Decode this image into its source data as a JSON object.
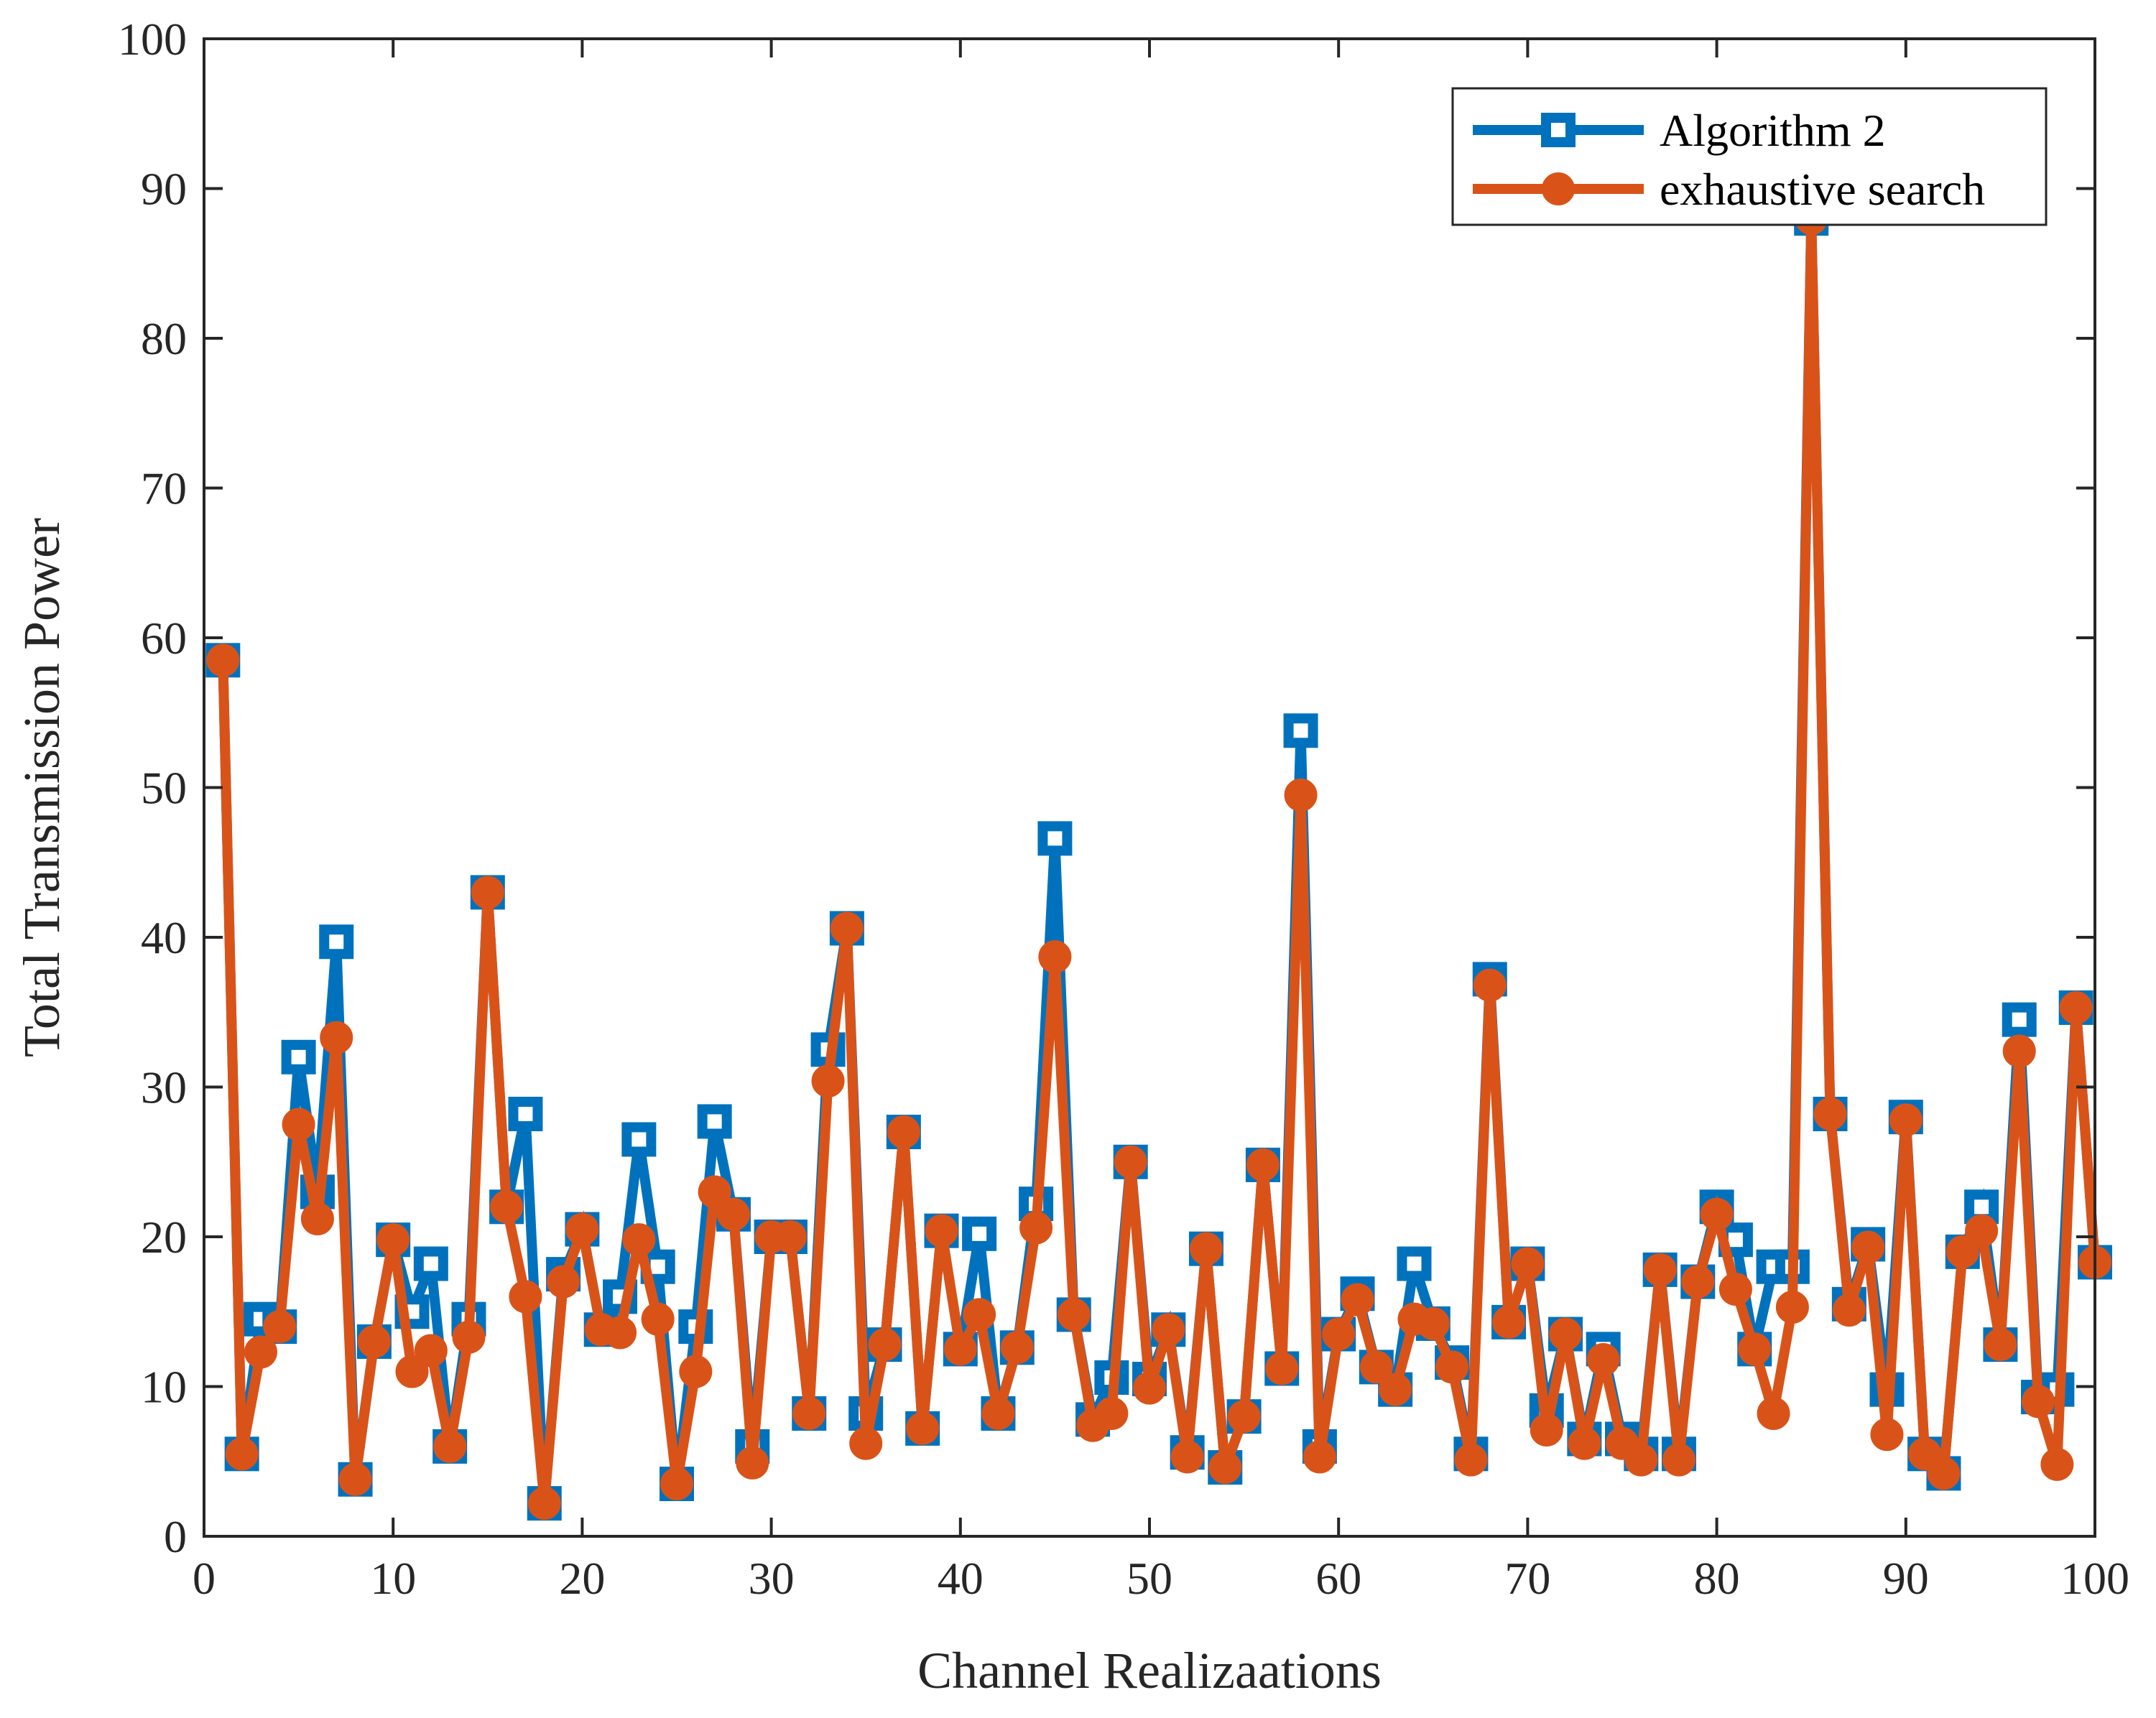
{
  "chart_data": {
    "type": "line",
    "title": "",
    "xlabel": "Channel Realizaations",
    "ylabel": "Total Transmission Power",
    "xlim": [
      0,
      100
    ],
    "ylim": [
      0,
      100
    ],
    "xticks": [
      "0",
      "10",
      "20",
      "30",
      "40",
      "50",
      "60",
      "70",
      "80",
      "90",
      "100"
    ],
    "yticks": [
      "0",
      "10",
      "20",
      "30",
      "40",
      "50",
      "60",
      "70",
      "80",
      "90",
      "100"
    ],
    "grid": false,
    "legend_position": "top-right",
    "x": [
      1,
      2,
      3,
      4,
      5,
      6,
      7,
      8,
      9,
      10,
      11,
      12,
      13,
      14,
      15,
      16,
      17,
      18,
      19,
      20,
      21,
      22,
      23,
      24,
      25,
      26,
      27,
      28,
      29,
      30,
      31,
      32,
      33,
      34,
      35,
      36,
      37,
      38,
      39,
      40,
      41,
      42,
      43,
      44,
      45,
      46,
      47,
      48,
      49,
      50,
      51,
      52,
      53,
      54,
      55,
      56,
      57,
      58,
      59,
      60,
      61,
      62,
      63,
      64,
      65,
      66,
      67,
      68,
      69,
      70,
      71,
      72,
      73,
      74,
      75,
      76,
      77,
      78,
      79,
      80,
      81,
      82,
      83,
      84,
      85,
      86,
      87,
      88,
      89,
      90,
      91,
      92,
      93,
      94,
      95,
      96,
      97,
      98,
      99,
      100
    ],
    "series": [
      {
        "name": "Algorithm 2",
        "color": "#0072BD",
        "marker": "square",
        "values": [
          58.5,
          5.5,
          14.5,
          14,
          32,
          23,
          39.7,
          3.8,
          13,
          19.8,
          15,
          18.2,
          6,
          14.5,
          43,
          22,
          28.2,
          2.2,
          17.5,
          20.5,
          13.8,
          16,
          26.5,
          18,
          3.5,
          14,
          27.7,
          21.5,
          6,
          20,
          20,
          8.2,
          32.5,
          40.6,
          8.2,
          12.8,
          27,
          7.2,
          20.4,
          12.5,
          20.2,
          8.2,
          12.6,
          22.2,
          46.6,
          14.8,
          7.8,
          10.6,
          25,
          10.5,
          13.8,
          5.6,
          19.2,
          4.6,
          8,
          24.8,
          11.2,
          53.8,
          6,
          13.5,
          16.2,
          11.3,
          9.8,
          18.2,
          14.2,
          11.6,
          5.5,
          37.2,
          14.3,
          18.2,
          8.4,
          13.5,
          6.5,
          12.5,
          6.5,
          5.5,
          17.8,
          5.5,
          17,
          22,
          19.8,
          12.5,
          18,
          18,
          88,
          28.2,
          15.5,
          19.5,
          9.8,
          28,
          5.5,
          4.2,
          19,
          22,
          12.8,
          34.5,
          9.3,
          9.8,
          35.3,
          18.3
        ]
      },
      {
        "name": "exhaustive search",
        "color": "#D95319",
        "marker": "circle",
        "values": [
          58.5,
          5.5,
          12.3,
          14,
          27.5,
          21.2,
          33.3,
          3.8,
          13,
          19.8,
          11,
          12.4,
          6,
          13.3,
          43,
          22,
          16,
          2.2,
          17,
          20.5,
          13.8,
          13.6,
          19.8,
          14.5,
          3.5,
          11,
          23,
          21.5,
          4.9,
          20,
          20,
          8.2,
          30.4,
          40.6,
          6.2,
          12.8,
          27,
          7.2,
          20.4,
          12.5,
          14.8,
          8.2,
          12.6,
          20.6,
          38.7,
          14.8,
          7.4,
          8.2,
          25,
          9.9,
          13.8,
          5.3,
          19.2,
          4.6,
          8,
          24.8,
          11.2,
          49.5,
          5.3,
          13.5,
          15.8,
          11.3,
          9.8,
          14.5,
          14.2,
          11.3,
          5.1,
          36.8,
          14.3,
          18.2,
          7.1,
          13.5,
          6.2,
          11.8,
          6.2,
          5.1,
          17.8,
          5.1,
          17,
          21.5,
          16.5,
          12.5,
          8.2,
          15.3,
          88,
          28.2,
          15.1,
          19.3,
          6.8,
          27.8,
          5.5,
          4.2,
          19,
          20.4,
          12.8,
          32.4,
          9,
          4.8,
          35.3,
          18.3
        ]
      }
    ]
  }
}
